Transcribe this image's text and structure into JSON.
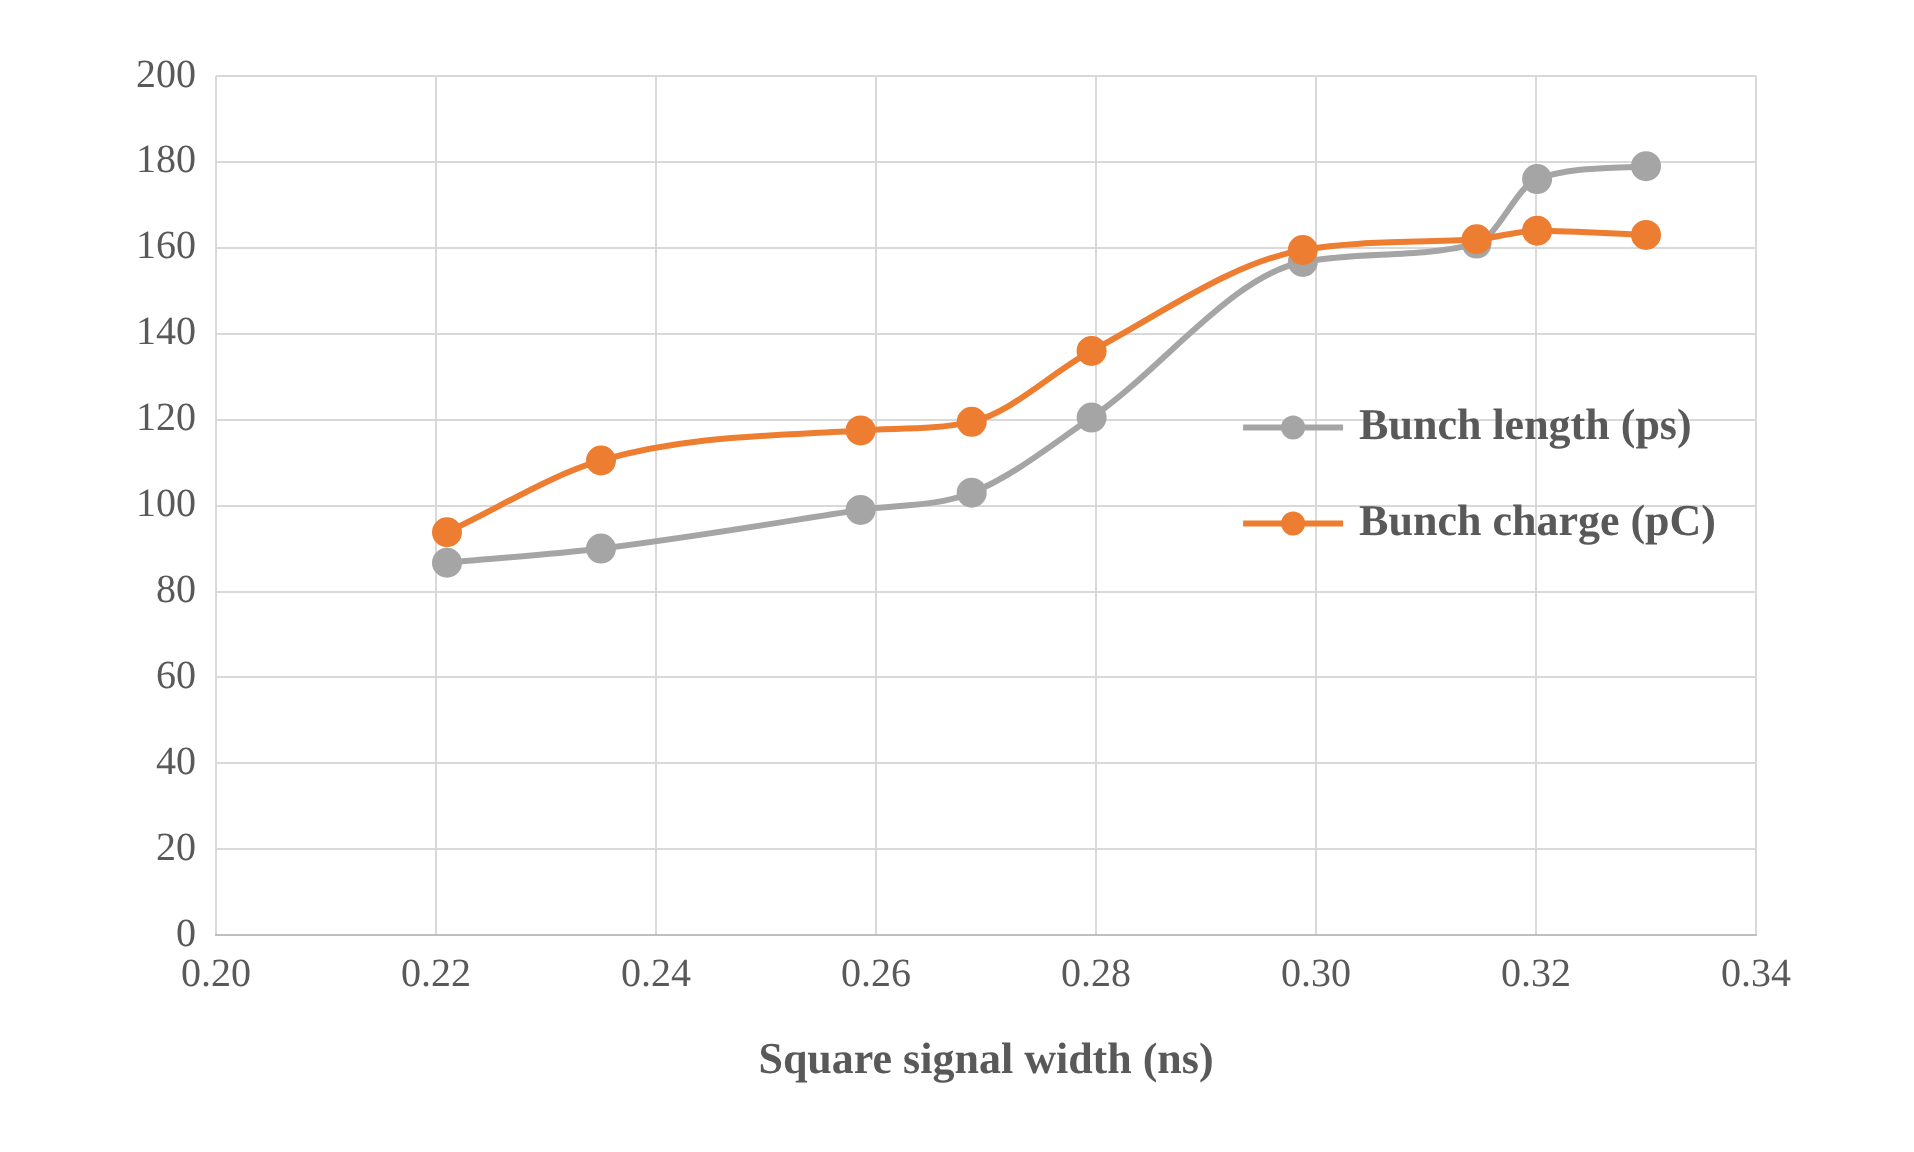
{
  "chart_data": {
    "type": "line",
    "xlabel": "Square signal width (ns)",
    "x": [
      0.221,
      0.235,
      0.2586,
      0.2687,
      0.2796,
      0.2988,
      0.3146,
      0.3201,
      0.33
    ],
    "series": [
      {
        "name": "Bunch length (ps)",
        "color": "#a5a5a5",
        "values": [
          86.7,
          90,
          99,
          103,
          120.5,
          156.7,
          161,
          176,
          179
        ]
      },
      {
        "name": "Bunch charge (pC)",
        "color": "#ed7d31",
        "values": [
          93.8,
          110.5,
          117.5,
          119.5,
          136,
          159.5,
          162,
          164,
          163
        ]
      }
    ],
    "xlim": [
      0.2,
      0.34
    ],
    "xticks": [
      {
        "value": 0.2,
        "label": "0.20"
      },
      {
        "value": 0.22,
        "label": "0.22"
      },
      {
        "value": 0.24,
        "label": "0.24"
      },
      {
        "value": 0.26,
        "label": "0.26"
      },
      {
        "value": 0.28,
        "label": "0.28"
      },
      {
        "value": 0.3,
        "label": "0.30"
      },
      {
        "value": 0.32,
        "label": "0.32"
      },
      {
        "value": 0.34,
        "label": "0.34"
      }
    ],
    "ylim": [
      0,
      200
    ],
    "yticks": [
      0,
      20,
      40,
      60,
      80,
      100,
      120,
      140,
      160,
      180,
      200
    ],
    "grid": true,
    "legend": "right",
    "marker": "circle",
    "line_style": "solid"
  }
}
